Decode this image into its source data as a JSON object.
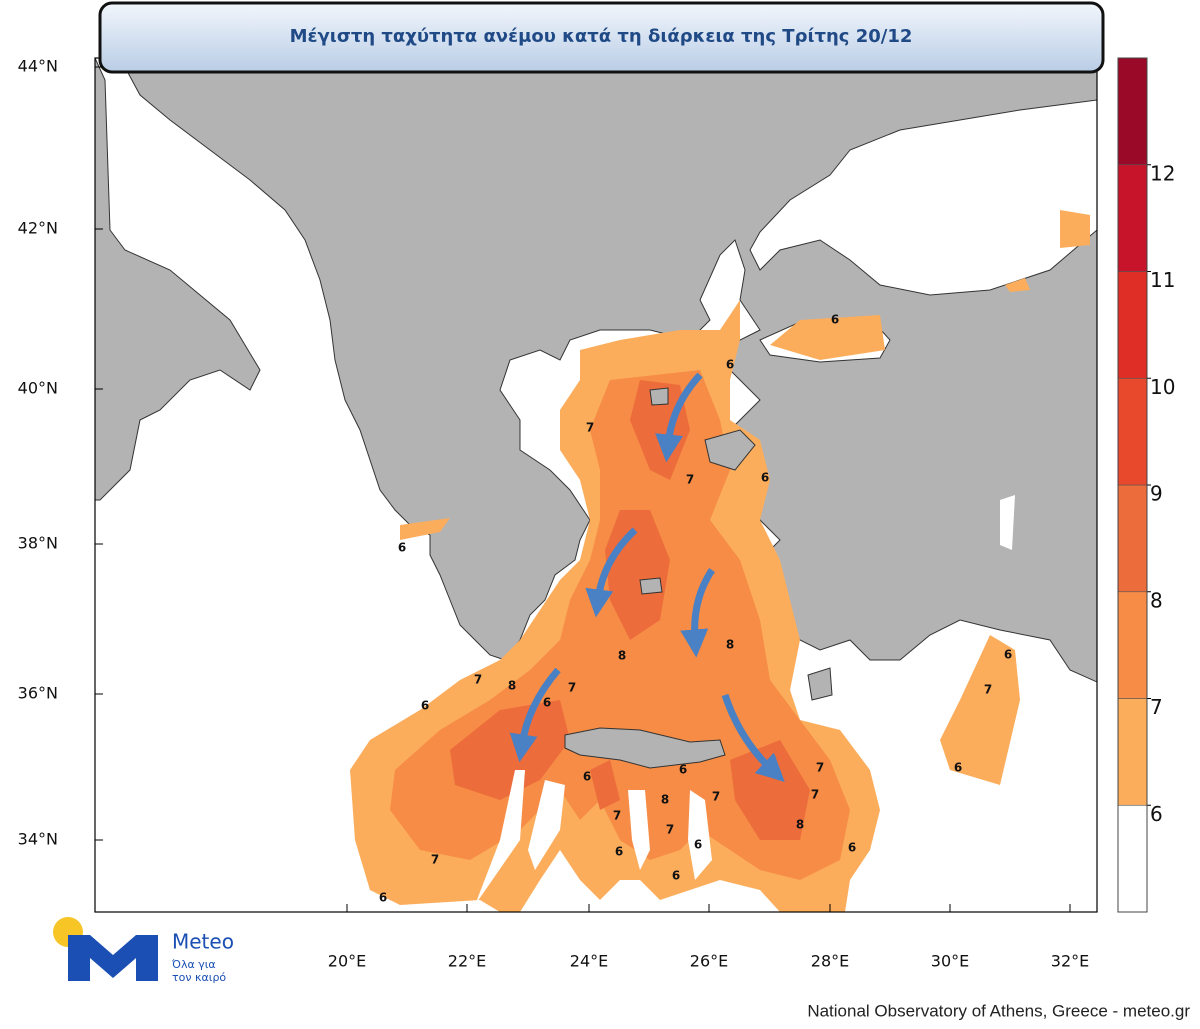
{
  "title": "Μέγιστη ταχύτητα ανέμου κατά τη διάρκεια της Τρίτης 20/12",
  "map": {
    "lat_labels": [
      "44°N",
      "42°N",
      "40°N",
      "38°N",
      "36°N",
      "34°N"
    ],
    "lon_labels": [
      "20°E",
      "22°E",
      "24°E",
      "26°E",
      "28°E",
      "30°E",
      "32°E"
    ],
    "contour_labels": [
      6,
      6,
      7,
      7,
      6,
      6,
      8,
      8,
      7,
      8,
      7,
      6,
      6,
      6,
      7,
      6,
      6,
      6,
      7,
      8,
      7,
      7,
      7,
      7,
      8,
      6,
      6,
      6,
      7,
      6,
      6
    ]
  },
  "colorbar": {
    "levels": [
      6,
      7,
      8,
      9,
      10,
      11,
      12
    ],
    "colors": [
      "#ffffff",
      "#fbad5c",
      "#f68c45",
      "#ec6c3b",
      "#e8492c",
      "#df2e25",
      "#c8142b",
      "#9a0a28"
    ]
  },
  "logo": {
    "name": "Meteo",
    "tagline": [
      "Όλα για",
      "τον καιρό"
    ]
  },
  "credit": "National Observatory of Athens, Greece - meteo.gr"
}
